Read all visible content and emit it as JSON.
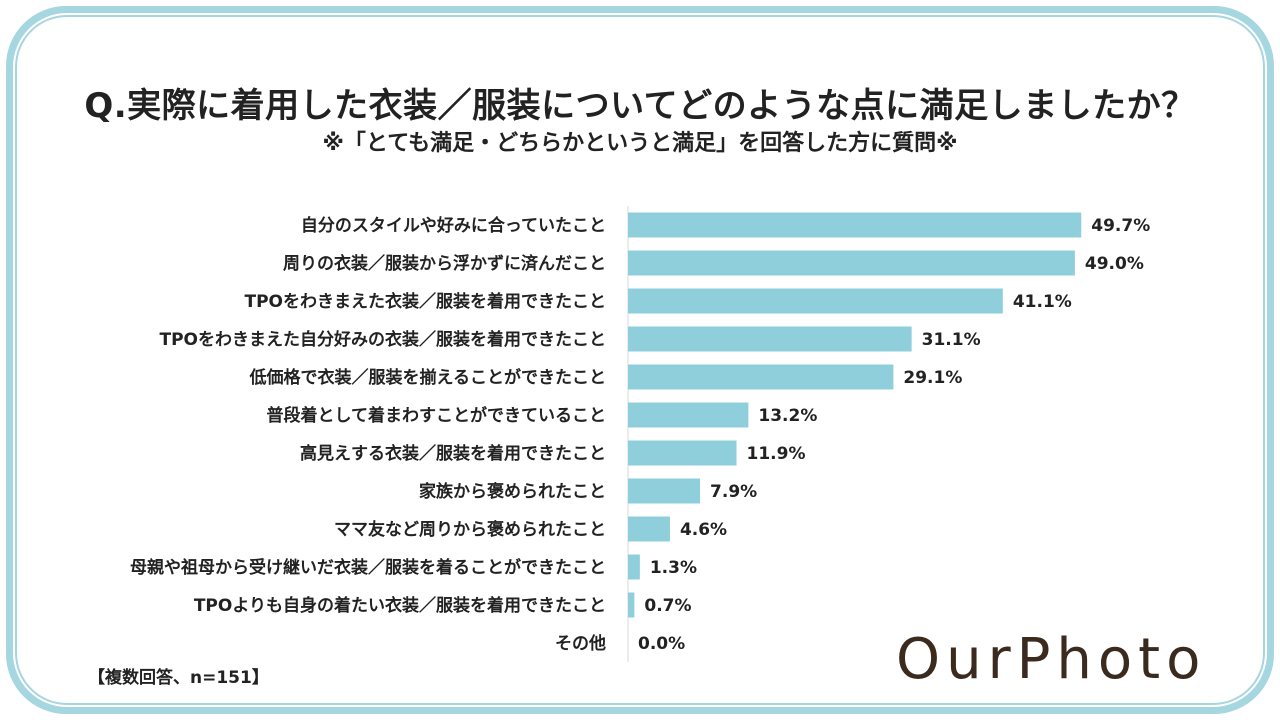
{
  "title": "Q.実際に着用した衣装／服装についてどのような点に満足しましたか？",
  "subtitle": "※「とても満足・どちらかというと満足」を回答した方に質問※",
  "footnote": "【複数回答、n=151】",
  "logo": "OurPhoto",
  "colors": {
    "bar": "#8fcfdc",
    "frame": "#a6d6e0",
    "text": "#222222"
  },
  "chart_data": {
    "type": "bar",
    "orientation": "horizontal",
    "title": "Q.実際に着用した衣装／服装についてどのような点に満足しましたか？",
    "categories": [
      "自分のスタイルや好みに合っていたこと",
      "周りの衣装／服装から浮かずに済んだこと",
      "TPOをわきまえた衣装／服装を着用できたこと",
      "TPOをわきまえた自分好みの衣装／服装を着用できたこと",
      "低価格で衣装／服装を揃えることができたこと",
      "普段着として着まわすことができていること",
      "高見えする衣装／服装を着用できたこと",
      "家族から褒められたこと",
      "ママ友など周りから褒められたこと",
      "母親や祖母から受け継いだ衣装／服装を着ることができたこと",
      "TPOよりも自身の着たい衣装／服装を着用できたこと",
      "その他"
    ],
    "values": [
      49.7,
      49.0,
      41.1,
      31.1,
      29.1,
      13.2,
      11.9,
      7.9,
      4.6,
      1.3,
      0.7,
      0.0
    ],
    "value_labels": [
      "49.7%",
      "49.0%",
      "41.1%",
      "31.1%",
      "29.1%",
      "13.2%",
      "11.9%",
      "7.9%",
      "4.6%",
      "1.3%",
      "0.7%",
      "0.0%"
    ],
    "unit": "%",
    "xlim": [
      0,
      50
    ]
  }
}
